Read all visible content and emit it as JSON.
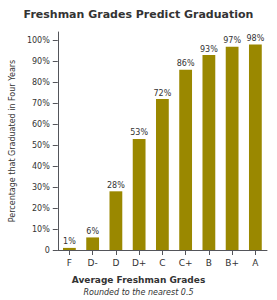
{
  "chart_data": {
    "type": "bar",
    "title": "Freshman Grades Predict Graduation",
    "ylabel": "Percentage that Graduated in Four Years",
    "xlabel": "Average Freshman Grades",
    "xlabel_subtitle": "Rounded to the nearest 0.5",
    "categories": [
      "F",
      "D-",
      "D",
      "D+",
      "C",
      "C+",
      "B",
      "B+",
      "A"
    ],
    "values": [
      1,
      6,
      28,
      53,
      72,
      86,
      93,
      97,
      98
    ],
    "value_labels": [
      "1%",
      "6%",
      "28%",
      "53%",
      "72%",
      "86%",
      "93%",
      "97%",
      "98%"
    ],
    "data_labels": true,
    "color": "#9A8800",
    "ylim": [
      0,
      104
    ],
    "yticks": [
      0,
      {
        "value": 10,
        "label": "10%"
      },
      {
        "value": 20,
        "label": "20%"
      },
      {
        "value": 30,
        "label": "30%"
      },
      {
        "value": 40,
        "label": "40%"
      },
      {
        "value": 50,
        "label": "50%"
      },
      {
        "value": 60,
        "label": "60%"
      },
      {
        "value": 70,
        "label": "70%"
      },
      {
        "value": 80,
        "label": "80%"
      },
      {
        "value": 90,
        "label": "90%"
      },
      {
        "value": 100,
        "label": "100%"
      }
    ],
    "grid": false
  }
}
